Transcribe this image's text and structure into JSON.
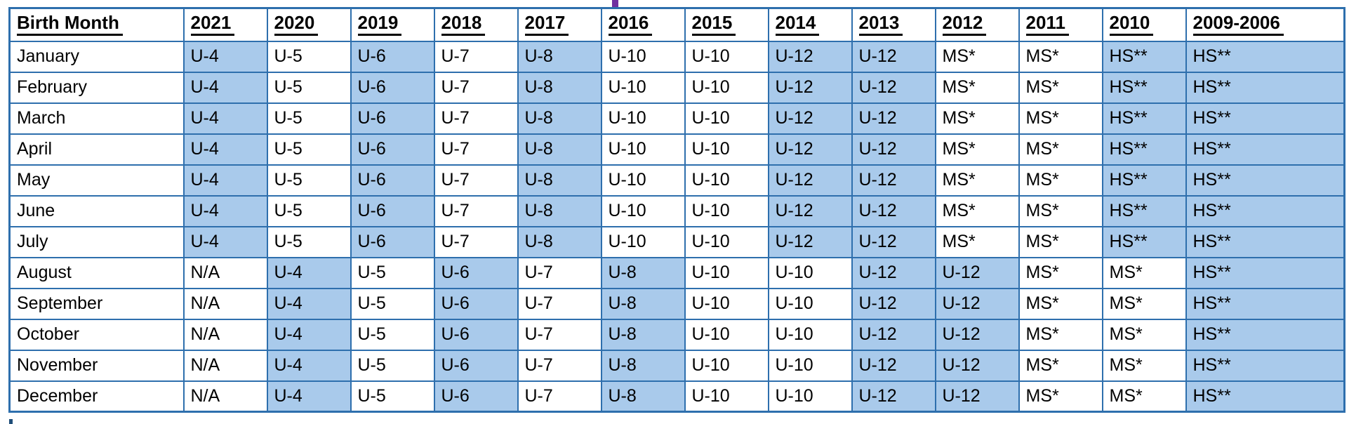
{
  "colors": {
    "table_border": "#2e6fad",
    "cell_highlight": "#a9caeb",
    "title_fragment": "#7030a0",
    "footnote_fragment": "#1f4e79",
    "text_color": "#000000",
    "page_bg": "#ffffff"
  },
  "table": {
    "columns": [
      "Birth Month",
      "2021",
      "2020",
      "2019",
      "2018",
      "2017",
      "2016",
      "2015",
      "2014",
      "2013",
      "2012",
      "2011",
      "2010",
      "2009-2006"
    ],
    "rows": [
      {
        "label": "January",
        "values": [
          "U-4",
          "U-5",
          "U-6",
          "U-7",
          "U-8",
          "U-10",
          "U-10",
          "U-12",
          "U-12",
          "MS*",
          "MS*",
          "HS**",
          "HS**"
        ],
        "highlighted": [
          true,
          false,
          true,
          false,
          true,
          false,
          false,
          true,
          true,
          false,
          false,
          true,
          true
        ]
      },
      {
        "label": "February",
        "values": [
          "U-4",
          "U-5",
          "U-6",
          "U-7",
          "U-8",
          "U-10",
          "U-10",
          "U-12",
          "U-12",
          "MS*",
          "MS*",
          "HS**",
          "HS**"
        ],
        "highlighted": [
          true,
          false,
          true,
          false,
          true,
          false,
          false,
          true,
          true,
          false,
          false,
          true,
          true
        ]
      },
      {
        "label": "March",
        "values": [
          "U-4",
          "U-5",
          "U-6",
          "U-7",
          "U-8",
          "U-10",
          "U-10",
          "U-12",
          "U-12",
          "MS*",
          "MS*",
          "HS**",
          "HS**"
        ],
        "highlighted": [
          true,
          false,
          true,
          false,
          true,
          false,
          false,
          true,
          true,
          false,
          false,
          true,
          true
        ]
      },
      {
        "label": "April",
        "values": [
          "U-4",
          "U-5",
          "U-6",
          "U-7",
          "U-8",
          "U-10",
          "U-10",
          "U-12",
          "U-12",
          "MS*",
          "MS*",
          "HS**",
          "HS**"
        ],
        "highlighted": [
          true,
          false,
          true,
          false,
          true,
          false,
          false,
          true,
          true,
          false,
          false,
          true,
          true
        ]
      },
      {
        "label": "May",
        "values": [
          "U-4",
          "U-5",
          "U-6",
          "U-7",
          "U-8",
          "U-10",
          "U-10",
          "U-12",
          "U-12",
          "MS*",
          "MS*",
          "HS**",
          "HS**"
        ],
        "highlighted": [
          true,
          false,
          true,
          false,
          true,
          false,
          false,
          true,
          true,
          false,
          false,
          true,
          true
        ]
      },
      {
        "label": "June",
        "values": [
          "U-4",
          "U-5",
          "U-6",
          "U-7",
          "U-8",
          "U-10",
          "U-10",
          "U-12",
          "U-12",
          "MS*",
          "MS*",
          "HS**",
          "HS**"
        ],
        "highlighted": [
          true,
          false,
          true,
          false,
          true,
          false,
          false,
          true,
          true,
          false,
          false,
          true,
          true
        ]
      },
      {
        "label": "July",
        "values": [
          "U-4",
          "U-5",
          "U-6",
          "U-7",
          "U-8",
          "U-10",
          "U-10",
          "U-12",
          "U-12",
          "MS*",
          "MS*",
          "HS**",
          "HS**"
        ],
        "highlighted": [
          true,
          false,
          true,
          false,
          true,
          false,
          false,
          true,
          true,
          false,
          false,
          true,
          true
        ]
      },
      {
        "label": "August",
        "values": [
          "N/A",
          "U-4",
          "U-5",
          "U-6",
          "U-7",
          "U-8",
          "U-10",
          "U-10",
          "U-12",
          "U-12",
          "MS*",
          "MS*",
          "HS**"
        ],
        "highlighted": [
          false,
          true,
          false,
          true,
          false,
          true,
          false,
          false,
          true,
          true,
          false,
          false,
          true
        ]
      },
      {
        "label": "September",
        "values": [
          "N/A",
          "U-4",
          "U-5",
          "U-6",
          "U-7",
          "U-8",
          "U-10",
          "U-10",
          "U-12",
          "U-12",
          "MS*",
          "MS*",
          "HS**"
        ],
        "highlighted": [
          false,
          true,
          false,
          true,
          false,
          true,
          false,
          false,
          true,
          true,
          false,
          false,
          true
        ]
      },
      {
        "label": "October",
        "values": [
          "N/A",
          "U-4",
          "U-5",
          "U-6",
          "U-7",
          "U-8",
          "U-10",
          "U-10",
          "U-12",
          "U-12",
          "MS*",
          "MS*",
          "HS**"
        ],
        "highlighted": [
          false,
          true,
          false,
          true,
          false,
          true,
          false,
          false,
          true,
          true,
          false,
          false,
          true
        ]
      },
      {
        "label": "November",
        "values": [
          "N/A",
          "U-4",
          "U-5",
          "U-6",
          "U-7",
          "U-8",
          "U-10",
          "U-10",
          "U-12",
          "U-12",
          "MS*",
          "MS*",
          "HS**"
        ],
        "highlighted": [
          false,
          true,
          false,
          true,
          false,
          true,
          false,
          false,
          true,
          true,
          false,
          false,
          true
        ]
      },
      {
        "label": "December",
        "values": [
          "N/A",
          "U-4",
          "U-5",
          "U-6",
          "U-7",
          "U-8",
          "U-10",
          "U-10",
          "U-12",
          "U-12",
          "MS*",
          "MS*",
          "HS**"
        ],
        "highlighted": [
          false,
          true,
          false,
          true,
          false,
          true,
          false,
          false,
          true,
          true,
          false,
          false,
          true
        ]
      }
    ]
  }
}
